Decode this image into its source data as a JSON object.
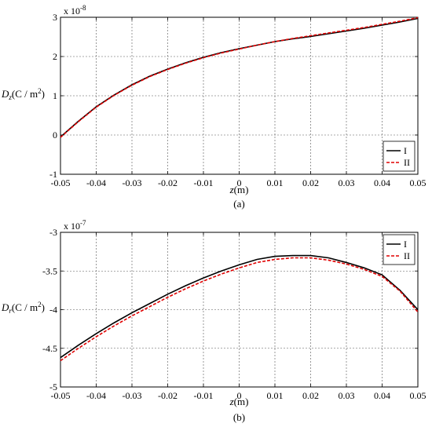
{
  "chart_data": [
    {
      "type": "line",
      "caption": "(a)",
      "xlabel": "z(m)",
      "ylabel_var": "D",
      "ylabel_sub": "z",
      "ylabel_unit": "(C / m",
      "ylabel_sup": "2",
      "ylabel_close": ")",
      "exponent_base": "x 10",
      "exponent_power": "-8",
      "xlim": [
        -0.05,
        0.05
      ],
      "ylim": [
        -1,
        3
      ],
      "xticks": [
        "-0.05",
        "-0.04",
        "-0.03",
        "-0.02",
        "-0.01",
        "0",
        "0.01",
        "0.02",
        "0.03",
        "0.04",
        "0.05"
      ],
      "yticks": [
        "-1",
        "0",
        "1",
        "2",
        "3"
      ],
      "grid": true,
      "legend_position": "bottom-right",
      "series": [
        {
          "name": "I",
          "color": "#000000",
          "dash": "solid",
          "x": [
            -0.05,
            -0.045,
            -0.04,
            -0.035,
            -0.03,
            -0.025,
            -0.02,
            -0.015,
            -0.01,
            -0.005,
            0,
            0.005,
            0.01,
            0.015,
            0.02,
            0.025,
            0.03,
            0.035,
            0.04,
            0.045,
            0.05
          ],
          "y": [
            -0.05,
            0.35,
            0.72,
            1.02,
            1.28,
            1.5,
            1.68,
            1.84,
            1.98,
            2.1,
            2.2,
            2.29,
            2.38,
            2.45,
            2.51,
            2.58,
            2.65,
            2.72,
            2.8,
            2.88,
            2.97
          ]
        },
        {
          "name": "II",
          "color": "#e00000",
          "dash": "dashed",
          "x": [
            -0.05,
            -0.045,
            -0.04,
            -0.035,
            -0.03,
            -0.025,
            -0.02,
            -0.015,
            -0.01,
            -0.005,
            0,
            0.005,
            0.01,
            0.015,
            0.02,
            0.025,
            0.03,
            0.035,
            0.04,
            0.045,
            0.05
          ],
          "y": [
            -0.06,
            0.34,
            0.71,
            1.01,
            1.27,
            1.49,
            1.67,
            1.83,
            1.97,
            2.09,
            2.19,
            2.29,
            2.38,
            2.46,
            2.53,
            2.6,
            2.67,
            2.74,
            2.82,
            2.9,
            2.99
          ]
        }
      ]
    },
    {
      "type": "line",
      "caption": "(b)",
      "xlabel": "z(m)",
      "ylabel_var": "D",
      "ylabel_sub": "r",
      "ylabel_unit": "(C / m",
      "ylabel_sup": "2",
      "ylabel_close": ")",
      "exponent_base": "x 10",
      "exponent_power": "-7",
      "xlim": [
        -0.05,
        0.05
      ],
      "ylim": [
        -5,
        -3
      ],
      "xticks": [
        "-0.05",
        "-0.04",
        "-0.03",
        "-0.02",
        "-0.01",
        "0",
        "0.01",
        "0.02",
        "0.03",
        "0.04",
        "0.05"
      ],
      "yticks": [
        "-5",
        "-4.5",
        "-4",
        "-3.5",
        "-3"
      ],
      "grid": true,
      "legend_position": "top-right",
      "series": [
        {
          "name": "I",
          "color": "#000000",
          "dash": "solid",
          "x": [
            -0.05,
            -0.045,
            -0.04,
            -0.035,
            -0.03,
            -0.025,
            -0.02,
            -0.015,
            -0.01,
            -0.005,
            0,
            0.005,
            0.01,
            0.015,
            0.02,
            0.025,
            0.03,
            0.035,
            0.04,
            0.045,
            0.05
          ],
          "y": [
            -4.62,
            -4.46,
            -4.31,
            -4.17,
            -4.04,
            -3.92,
            -3.8,
            -3.69,
            -3.59,
            -3.5,
            -3.42,
            -3.35,
            -3.31,
            -3.3,
            -3.3,
            -3.33,
            -3.39,
            -3.46,
            -3.55,
            -3.75,
            -4.0
          ]
        },
        {
          "name": "II",
          "color": "#e00000",
          "dash": "dashed",
          "x": [
            -0.05,
            -0.045,
            -0.04,
            -0.035,
            -0.03,
            -0.025,
            -0.02,
            -0.015,
            -0.01,
            -0.005,
            0,
            0.005,
            0.01,
            0.015,
            0.02,
            0.025,
            0.03,
            0.035,
            0.04,
            0.045,
            0.05
          ],
          "y": [
            -4.66,
            -4.5,
            -4.35,
            -4.21,
            -4.08,
            -3.96,
            -3.84,
            -3.73,
            -3.63,
            -3.54,
            -3.46,
            -3.39,
            -3.35,
            -3.33,
            -3.33,
            -3.36,
            -3.41,
            -3.48,
            -3.57,
            -3.76,
            -4.03
          ]
        }
      ]
    }
  ]
}
